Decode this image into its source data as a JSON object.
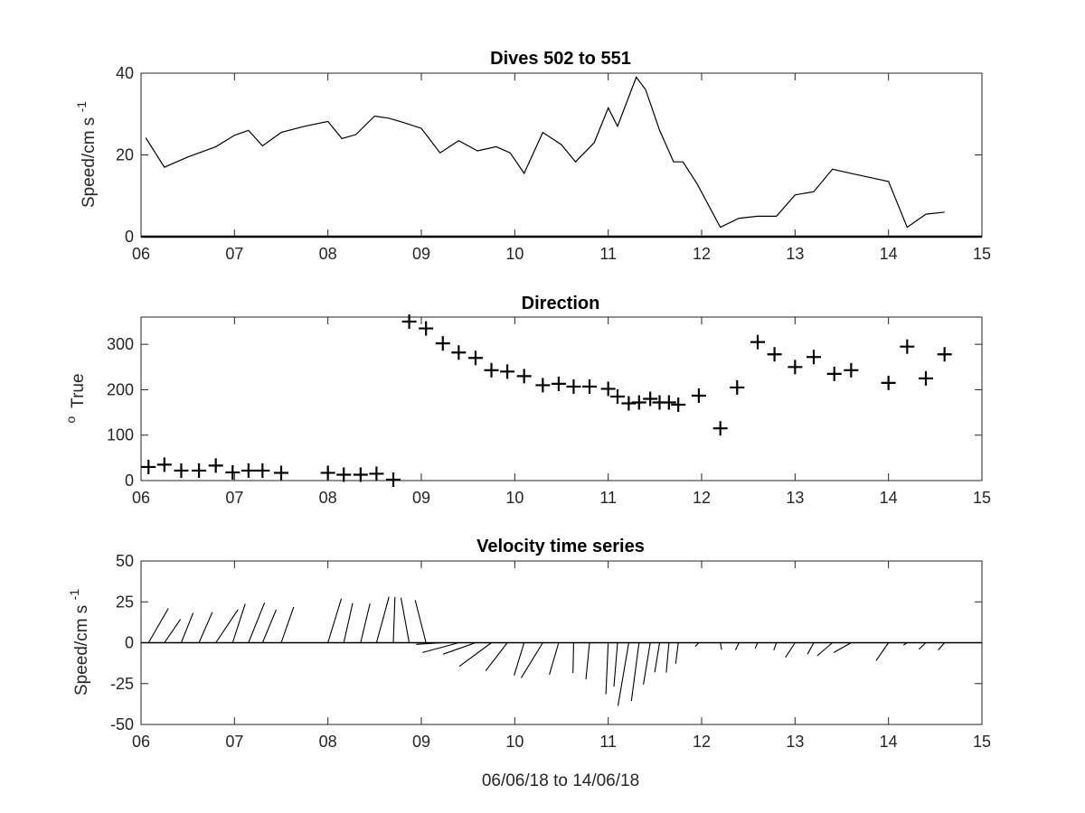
{
  "chart_data": [
    {
      "id": "speed",
      "type": "line",
      "title": "Dives 502 to 551",
      "ylabel": "Speed/cm s",
      "ylabel_superscript": "-1",
      "xlabel": "",
      "xlim": [
        6,
        15
      ],
      "ylim": [
        0,
        40
      ],
      "xticks": [
        "06",
        "07",
        "08",
        "09",
        "10",
        "11",
        "12",
        "13",
        "14",
        "15"
      ],
      "yticks": [
        "0",
        "20",
        "40"
      ],
      "grid": false,
      "series": [
        {
          "x": [
            6.05,
            6.25,
            6.5,
            6.8,
            7.0,
            7.15,
            7.3,
            7.5,
            7.75,
            8.0,
            8.15,
            8.3,
            8.5,
            8.65,
            8.8,
            9.0,
            9.2,
            9.4,
            9.6,
            9.8,
            9.95,
            10.1,
            10.3,
            10.5,
            10.65,
            10.85,
            11.0,
            11.1,
            11.3,
            11.4,
            11.55,
            11.7,
            11.8,
            11.95,
            12.2,
            12.4,
            12.6,
            12.8,
            13.0,
            13.2,
            13.4,
            13.6,
            13.8,
            14.0,
            14.2,
            14.4,
            14.6
          ],
          "y": [
            24.2,
            17.0,
            19.5,
            22.0,
            24.8,
            26.0,
            22.2,
            25.5,
            27.0,
            28.2,
            24.0,
            25.0,
            29.5,
            29.0,
            28.0,
            26.5,
            20.5,
            23.5,
            21.0,
            22.0,
            20.5,
            15.5,
            25.5,
            22.5,
            18.3,
            23.0,
            31.5,
            27.0,
            39.0,
            36.0,
            26.0,
            18.3,
            18.3,
            13.0,
            2.3,
            4.5,
            5.0,
            5.0,
            10.2,
            11.0,
            16.5,
            15.5,
            14.5,
            13.5,
            2.3,
            5.5,
            6.0
          ]
        }
      ]
    },
    {
      "id": "direction",
      "type": "scatter",
      "title": "Direction",
      "ylabel": "True",
      "ylabel_superscript": "o",
      "xlabel": "",
      "xlim": [
        6,
        15
      ],
      "ylim": [
        0,
        360
      ],
      "xticks": [
        "06",
        "07",
        "08",
        "09",
        "10",
        "11",
        "12",
        "13",
        "14",
        "15"
      ],
      "yticks": [
        "0",
        "100",
        "200",
        "300"
      ],
      "grid": false,
      "marker": "plus",
      "series": [
        {
          "x": [
            6.08,
            6.25,
            6.43,
            6.62,
            6.8,
            6.98,
            7.15,
            7.3,
            7.5,
            8.0,
            8.17,
            8.35,
            8.52,
            8.7,
            8.87,
            9.05,
            9.23,
            9.4,
            9.58,
            9.75,
            9.92,
            10.1,
            10.3,
            10.47,
            10.63,
            10.8,
            11.0,
            11.1,
            11.22,
            11.33,
            11.45,
            11.55,
            11.65,
            11.75,
            11.97,
            12.2,
            12.38,
            12.6,
            12.78,
            13.0,
            13.2,
            13.42,
            13.6,
            14.0,
            14.2,
            14.4,
            14.6
          ],
          "y": [
            30,
            35,
            22,
            22,
            33,
            18,
            22,
            22,
            17,
            17,
            13,
            13,
            15,
            2,
            350,
            335,
            302,
            282,
            270,
            243,
            240,
            230,
            210,
            213,
            207,
            207,
            202,
            185,
            170,
            172,
            180,
            172,
            172,
            167,
            187,
            115,
            205,
            305,
            278,
            250,
            272,
            235,
            243,
            215,
            295,
            225,
            278
          ]
        }
      ]
    },
    {
      "id": "velocity",
      "type": "quiver",
      "title": "Velocity time series",
      "ylabel": "Speed/cm s",
      "ylabel_superscript": "-1",
      "xlabel": "06/06/18 to 14/06/18",
      "xlim": [
        6,
        15
      ],
      "ylim": [
        -50,
        50
      ],
      "xticks": [
        "06",
        "07",
        "08",
        "09",
        "10",
        "11",
        "12",
        "13",
        "14",
        "15"
      ],
      "yticks": [
        "-50",
        "-25",
        "0",
        "25",
        "50"
      ],
      "grid": false,
      "series": [
        {
          "x": [
            6.08,
            6.25,
            6.43,
            6.62,
            6.8,
            6.98,
            7.15,
            7.3,
            7.5,
            8.0,
            8.17,
            8.35,
            8.52,
            8.7,
            8.87,
            9.05,
            9.23,
            9.4,
            9.58,
            9.75,
            9.92,
            10.1,
            10.3,
            10.47,
            10.63,
            10.8,
            11.0,
            11.1,
            11.22,
            11.33,
            11.45,
            11.55,
            11.65,
            11.75,
            11.97,
            12.2,
            12.4,
            12.6,
            12.8,
            13.0,
            13.2,
            13.4,
            13.6,
            14.0,
            14.2,
            14.4,
            14.6
          ],
          "u": [
            12.1,
            9.8,
            7.3,
            8.2,
            13.6,
            7.7,
            9.8,
            8.4,
            7.6,
            8.2,
            5.4,
            5.7,
            7.6,
            1.0,
            -5.0,
            -6.6,
            -16.3,
            -22.2,
            -19.8,
            -19.6,
            -13.2,
            -6.1,
            -13.2,
            -5.7,
            -0.4,
            -2.2,
            -1.4,
            -2.2,
            -6.6,
            -4.7,
            -4.2,
            -3.0,
            -1.6,
            -1.6,
            -2.2,
            0.8,
            -2.2,
            -1.6,
            -1.6,
            -5.9,
            -3.8,
            -9.3,
            -10.6,
            -7.6,
            -2.3,
            -4.2,
            -3.9
          ],
          "v": [
            21.0,
            14.3,
            18.2,
            18.7,
            20.3,
            23.8,
            24.5,
            20.2,
            21.9,
            26.9,
            24.2,
            24.0,
            28.0,
            28.0,
            27.5,
            26.0,
            -1.0,
            -6.0,
            -7.0,
            -14.5,
            -17.2,
            -20.0,
            -21.5,
            -19.5,
            -18.5,
            -22.5,
            -31.5,
            -26.8,
            -38.6,
            -35.7,
            -25.6,
            -18.1,
            -18.3,
            -12.9,
            -2.3,
            -4.3,
            -4.5,
            -3.5,
            -4.6,
            -9.0,
            -7.0,
            -8.0,
            -6.0,
            -11.0,
            -1.5,
            -4.0,
            -4.5
          ]
        }
      ]
    }
  ]
}
